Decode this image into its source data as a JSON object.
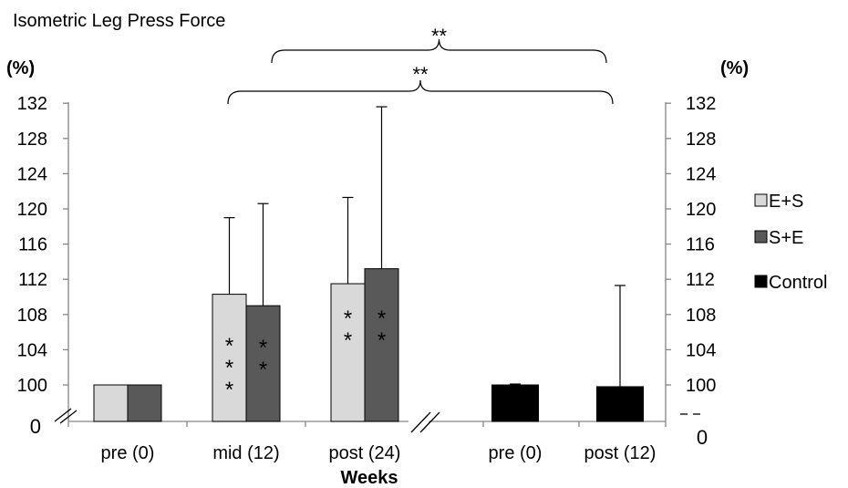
{
  "chart_data": {
    "type": "bar",
    "title": "Isometric  Leg Press Force",
    "xlabel": "Weeks",
    "ylabel_left": "(%)",
    "ylabel_right": "(%)",
    "ylim": [
      98,
      132
    ],
    "yticks": [
      100,
      104,
      108,
      112,
      116,
      120,
      124,
      128,
      132
    ],
    "y_break_label": "0",
    "y_break_label_right": "0",
    "groups": [
      {
        "label": "pre (0)"
      },
      {
        "label": "mid (12)"
      },
      {
        "label": "post (24)"
      },
      {
        "label": "pre (0)"
      },
      {
        "label": "post (12)"
      }
    ],
    "series": [
      {
        "name": "E+S",
        "color": "#d9d9d9",
        "points": [
          {
            "group": 0,
            "value": 100,
            "error": null,
            "stars": ""
          },
          {
            "group": 1,
            "value": 110.3,
            "error": 119.0,
            "stars": "***"
          },
          {
            "group": 2,
            "value": 111.5,
            "error": 121.3,
            "stars": "**"
          }
        ]
      },
      {
        "name": "S+E",
        "color": "#595959",
        "points": [
          {
            "group": 0,
            "value": 100,
            "error": null,
            "stars": ""
          },
          {
            "group": 1,
            "value": 109.0,
            "error": 120.6,
            "stars": "**"
          },
          {
            "group": 2,
            "value": 113.2,
            "error": 131.6,
            "stars": "**"
          }
        ]
      },
      {
        "name": "Control",
        "color": "#000000",
        "points": [
          {
            "group": 3,
            "value": 100.0,
            "error": 100.1,
            "stars": ""
          },
          {
            "group": 4,
            "value": 99.8,
            "error": 111.3,
            "stars": ""
          }
        ]
      }
    ],
    "significance": [
      {
        "label": "**",
        "from_group": 2,
        "to_group": 4
      },
      {
        "label": "**",
        "from_group": 1,
        "to_group": 4
      }
    ],
    "legend_position": "right",
    "grid": false
  }
}
